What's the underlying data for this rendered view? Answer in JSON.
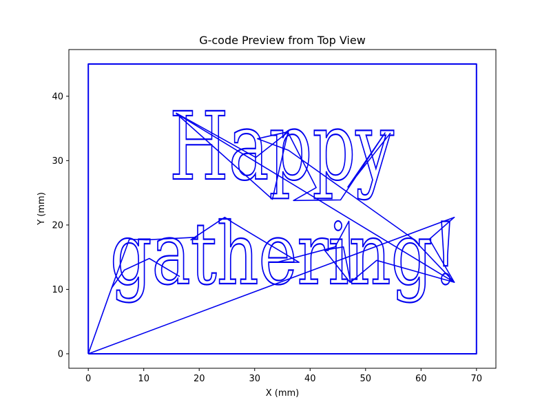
{
  "chart_data": {
    "type": "line",
    "title": "G-code Preview from Top View",
    "xlabel": "X (mm)",
    "ylabel": "Y (mm)",
    "xlim": [
      -3.5,
      73.5
    ],
    "ylim": [
      -2.25,
      47.25
    ],
    "xticks": [
      0,
      10,
      20,
      30,
      40,
      50,
      60,
      70
    ],
    "yticks": [
      0,
      10,
      20,
      30,
      40
    ],
    "grid": false,
    "line_color": "#0000ee",
    "text_lines": [
      "Happy",
      "gathering!"
    ],
    "series": [
      {
        "kind": "border",
        "x": [
          0,
          0,
          70,
          70,
          0
        ],
        "y": [
          0,
          45,
          45,
          0,
          0
        ]
      },
      {
        "kind": "travel",
        "x": [
          0,
          3.7,
          7.4,
          10.5,
          19.5,
          18.5,
          24.6,
          26.0,
          38.0,
          34.0,
          44.5,
          47.0,
          47.2,
          42.6,
          46.0,
          47.3,
          52.0,
          66.0,
          61.5,
          66.0,
          0
        ],
        "y": [
          0,
          9.0,
          17.8,
          17.7,
          18.1,
          17.7,
          21.2,
          20.4,
          14.2,
          14.2,
          16.6,
          20.6,
          11.1,
          16.1,
          16.6,
          11.1,
          14.5,
          11.1,
          17.8,
          21.2,
          0
        ]
      },
      {
        "kind": "travel",
        "x": [
          15.8,
          30.2,
          36.1,
          30.5,
          36.1,
          58.5,
          66.0,
          15.9,
          33.2,
          36.0,
          41.1,
          37.0,
          45.5,
          53.5,
          46.8,
          54.5
        ],
        "y": [
          37.4,
          30.5,
          34.5,
          33.4,
          31.6,
          17.9,
          11.1,
          37.3,
          24.0,
          34.4,
          25.8,
          23.8,
          23.9,
          34.3,
          25.9,
          34.3
        ]
      },
      {
        "kind": "travel",
        "x": [
          4.2,
          6.5,
          11.0,
          16.5
        ],
        "y": [
          10.2,
          13.0,
          14.8,
          12.0
        ]
      }
    ]
  }
}
